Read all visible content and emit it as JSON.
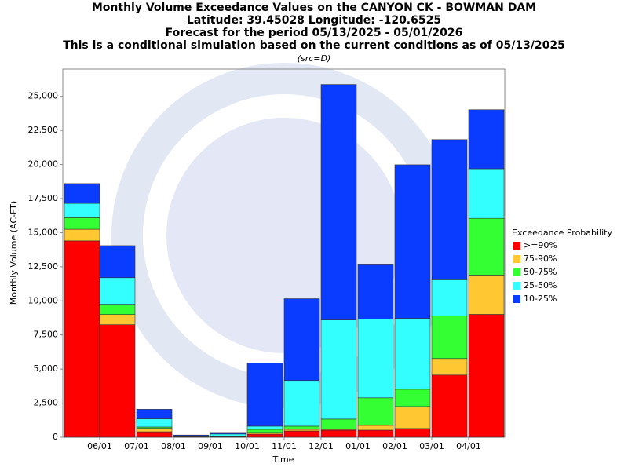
{
  "chart_data": {
    "type": "stacked_bar",
    "title": [
      "Monthly Volume Exceedance Values on the CANYON CK - BOWMAN DAM",
      "Latitude: 39.45028 Longitude: -120.6525",
      "Forecast for the period 05/13/2025 - 05/01/2026",
      "This is a conditional simulation based on the current conditions as of 05/13/2025"
    ],
    "subtitle": "(src=D)",
    "x_label": "Time",
    "y_label": "Monthly Volume (AC-FT)",
    "legend_title": "Exceedance Probability",
    "categories": [
      null,
      "06/01",
      "07/01",
      "08/01",
      "09/01",
      "10/01",
      "11/01",
      "12/01",
      "01/01",
      "02/01",
      "03/01",
      "04/01"
    ],
    "series": [
      {
        "name": ">=90%",
        "color": "#ff0000",
        "values": [
          14400,
          8250,
          400,
          20,
          30,
          230,
          460,
          520,
          520,
          640,
          4560,
          9010
        ]
      },
      {
        "name": "75-90%",
        "color": "#ffc832",
        "values": [
          850,
          750,
          250,
          20,
          30,
          120,
          120,
          60,
          350,
          1610,
          1210,
          2880
        ]
      },
      {
        "name": "50-75%",
        "color": "#33ff33",
        "values": [
          850,
          750,
          100,
          20,
          30,
          230,
          230,
          750,
          2020,
          1270,
          3120,
          4160
        ]
      },
      {
        "name": "25-50%",
        "color": "#33ffff",
        "values": [
          1050,
          1950,
          600,
          40,
          150,
          230,
          3350,
          7270,
          5770,
          5200,
          2660,
          3640
        ]
      },
      {
        "name": "10-25%",
        "color": "#0a3cff",
        "values": [
          1450,
          2350,
          700,
          60,
          110,
          4620,
          6000,
          17270,
          4040,
          11260,
          10280,
          4330
        ]
      }
    ],
    "ylim": [
      0,
      27000
    ],
    "yticks": [
      0,
      {
        "value": 2500,
        "label": "2,500"
      },
      {
        "value": 5000,
        "label": "5,000"
      },
      {
        "value": 7500,
        "label": "7,500"
      },
      {
        "value": 10000,
        "label": "10,000"
      },
      {
        "value": 12500,
        "label": "12,500"
      },
      {
        "value": 15000,
        "label": "15,000"
      },
      {
        "value": 17500,
        "label": "17,500"
      },
      {
        "value": 20000,
        "label": "20,000"
      },
      {
        "value": 22500,
        "label": "22,500"
      },
      {
        "value": 25000,
        "label": "25,000"
      }
    ]
  }
}
